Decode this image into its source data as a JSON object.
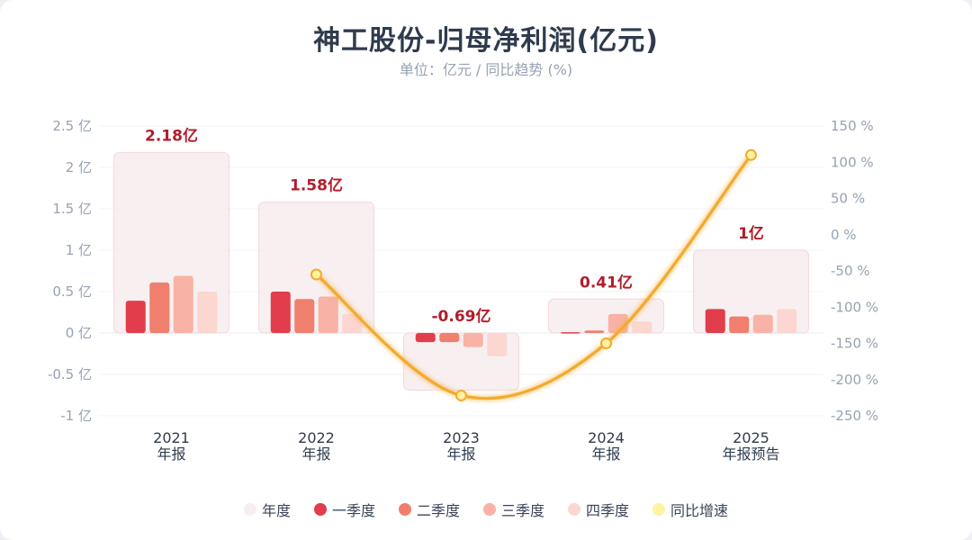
{
  "title": "神工股份-归母净利润(亿元)",
  "subtitle": "单位：亿元 / 同比趋势 (%)",
  "colors": {
    "annual": "#f8eef0",
    "q1": "#e23d4a",
    "q2": "#f07f6d",
    "q3": "#f8b2a6",
    "q4": "#fcd6d0",
    "yoy": "#f3aa2f",
    "yoy_dot": "#fff3a0",
    "label": "#b11d2b"
  },
  "legend": [
    {
      "label": "年度",
      "color": "#f8eef0"
    },
    {
      "label": "一季度",
      "color": "#e23d4a"
    },
    {
      "label": "二季度",
      "color": "#f07f6d"
    },
    {
      "label": "三季度",
      "color": "#f8b2a6"
    },
    {
      "label": "四季度",
      "color": "#fcd6d0"
    },
    {
      "label": "同比增速",
      "color": "#fff3a0"
    }
  ],
  "chart_data": {
    "type": "bar",
    "title": "神工股份-归母净利润(亿元)",
    "subtitle": "单位：亿元 / 同比趋势 (%)",
    "categories": [
      {
        "year": "2021",
        "kind": "年报"
      },
      {
        "year": "2022",
        "kind": "年报"
      },
      {
        "year": "2023",
        "kind": "年报"
      },
      {
        "year": "2024",
        "kind": "年报"
      },
      {
        "year": "2025",
        "kind": "年报预告"
      }
    ],
    "annual_labels": [
      "2.18亿",
      "1.58亿",
      "-0.69亿",
      "0.41亿",
      "1亿"
    ],
    "series": [
      {
        "name": "年度",
        "values": [
          2.18,
          1.58,
          -0.69,
          0.41,
          1.0
        ]
      },
      {
        "name": "一季度",
        "values": [
          0.39,
          0.5,
          -0.11,
          0.01,
          0.29
        ]
      },
      {
        "name": "二季度",
        "values": [
          0.61,
          0.41,
          -0.11,
          0.03,
          0.2
        ]
      },
      {
        "name": "三季度",
        "values": [
          0.69,
          0.44,
          -0.17,
          0.23,
          0.22
        ]
      },
      {
        "name": "四季度",
        "values": [
          0.5,
          0.23,
          -0.28,
          0.14,
          0.29
        ]
      },
      {
        "name": "同比增速",
        "axis": "right",
        "values": [
          null,
          -55,
          -222,
          -150,
          110
        ]
      }
    ],
    "left_axis": {
      "min": -1,
      "max": 2.5,
      "ticks": [
        2.5,
        2,
        1.5,
        1,
        0.5,
        0,
        -0.5,
        -1
      ],
      "tick_labels": [
        "2.5 亿",
        "2 亿",
        "1.5 亿",
        "1 亿",
        "0.5 亿",
        "0 亿",
        "-0.5 亿",
        "-1 亿"
      ]
    },
    "right_axis": {
      "min": -250,
      "max": 150,
      "ticks": [
        150,
        100,
        50,
        0,
        -50,
        -100,
        -150,
        -200,
        -250
      ],
      "tick_labels": [
        "150 %",
        "100 %",
        "50 %",
        "0 %",
        "-50 %",
        "-100 %",
        "-150 %",
        "-200 %",
        "-250 %"
      ]
    },
    "grid": true,
    "legend_position": "bottom"
  }
}
